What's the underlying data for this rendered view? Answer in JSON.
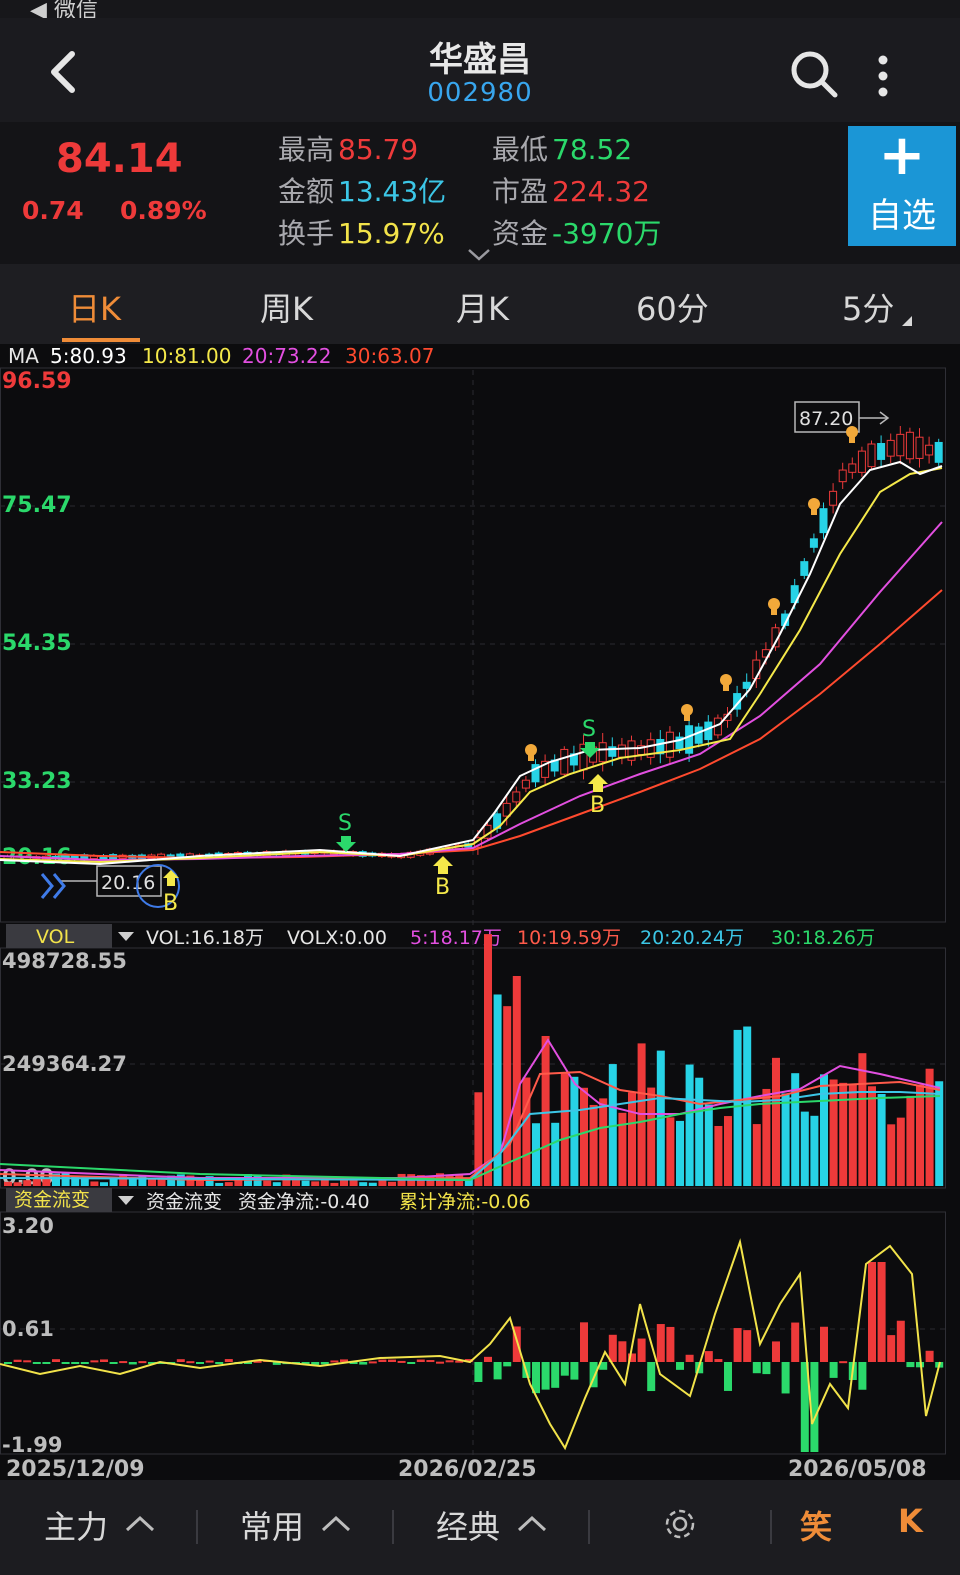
{
  "statusbar": {
    "back_app": "◀ 微信"
  },
  "header": {
    "title": "华盛昌",
    "code": "002980"
  },
  "quote": {
    "price": "84.14",
    "change": "0.74",
    "change_pct": "0.89%",
    "stats": [
      {
        "label": "最高",
        "value": "85.79",
        "color": "red"
      },
      {
        "label": "最低",
        "value": "78.52",
        "color": "green"
      },
      {
        "label": "金额",
        "value": "13.43亿",
        "color": "cyan"
      },
      {
        "label": "市盈",
        "value": "224.32",
        "color": "red"
      },
      {
        "label": "换手",
        "value": "15.97%",
        "color": "yellow"
      },
      {
        "label": "资金",
        "value": "-3970万",
        "color": "green"
      }
    ],
    "add_plus": "+",
    "add_label": "自选"
  },
  "tabs": [
    "日K",
    "周K",
    "月K",
    "60分",
    "5分"
  ],
  "colors": {
    "up": "#ee3a3a",
    "down": "#27d3e6",
    "ma5": "#ffffff",
    "ma10": "#f5e94a",
    "ma20": "#e24fe0",
    "ma30": "#ff4a2e",
    "accent": "#ef8c38"
  },
  "ma_legend": {
    "prefix": "MA",
    "ma5": "5:80.93",
    "ma10": "10:81.00",
    "ma20": "20:73.22",
    "ma30": "30:63.07"
  },
  "price_axis": [
    "96.59",
    "75.47",
    "54.35",
    "33.23",
    "20.16"
  ],
  "annotations": {
    "high_label": "87.20",
    "low_label": "20.16",
    "s": "S",
    "b": "B"
  },
  "vol_panel": {
    "tag": "VOL",
    "vol": "VOL:16.18万",
    "volx": "VOLX:0.00",
    "v5": "5:18.17万",
    "v10": "10:19.59万",
    "v20": "20:20.24万",
    "v30": "30:18.26万",
    "axis": [
      "498728.55",
      "249364.27",
      "0.00"
    ]
  },
  "flow_panel": {
    "tag": "资金流变",
    "name": "资金流变",
    "net": "资金净流:-0.40",
    "cum": "累计净流:-0.06",
    "axis": [
      "3.20",
      "0.61",
      "-1.99"
    ]
  },
  "dates": [
    "2025/12/09",
    "2026/02/25",
    "2026/05/08"
  ],
  "bottom": {
    "main": "主力",
    "common": "常用",
    "classic": "经典",
    "icon_a": "笑",
    "icon_b": "K"
  }
}
